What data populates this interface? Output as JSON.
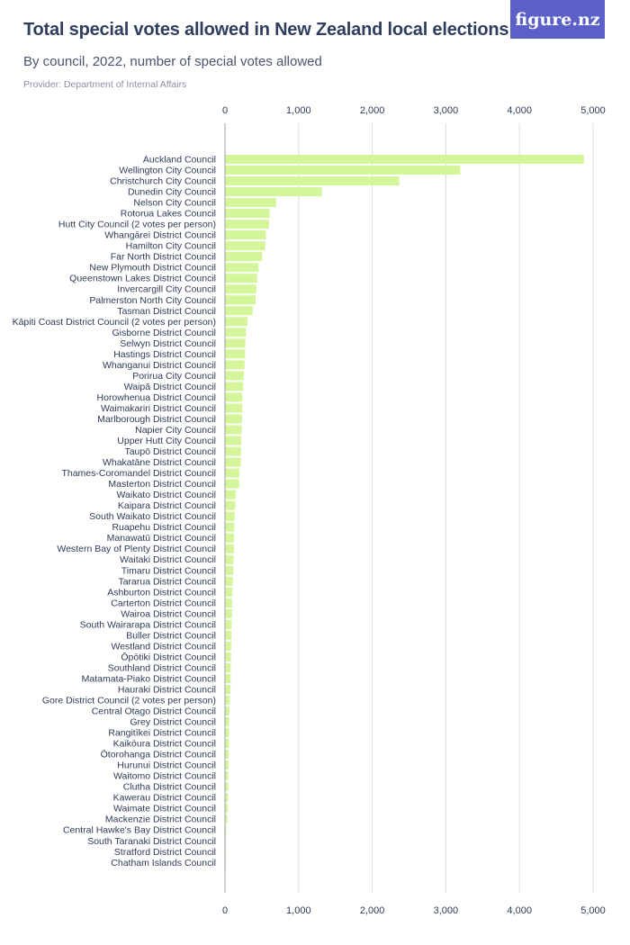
{
  "header": {
    "title": "Total special votes allowed in New Zealand local elections",
    "subtitle": "By council, 2022, number of special votes allowed",
    "provider": "Provider: Department of Internal Affairs",
    "logo": "figure.nz"
  },
  "colors": {
    "bar": "#d4f59a",
    "grid": "#dddddd",
    "axis": "#9aa0ad",
    "label": "#2e3b55",
    "logo_bg": "#5b5fc7"
  },
  "chart_data": {
    "type": "bar",
    "orientation": "horizontal",
    "title": "Total special votes allowed in New Zealand local elections",
    "subtitle": "By council, 2022, number of special votes allowed",
    "xlabel": "",
    "ylabel": "",
    "xlim": [
      0,
      5000
    ],
    "ticks": [
      0,
      1000,
      2000,
      3000,
      4000,
      5000
    ],
    "tick_labels": [
      "0",
      "1,000",
      "2,000",
      "3,000",
      "4,000",
      "5,000"
    ],
    "grid": true,
    "categories": [
      "Auckland Council",
      "Wellington City Council",
      "Christchurch City Council",
      "Dunedin City Council",
      "Nelson City Council",
      "Rotorua Lakes Council",
      "Hutt City Council (2 votes per person)",
      "Whangārei District Council",
      "Hamilton City Council",
      "Far North District Council",
      "New Plymouth District Council",
      "Queenstown Lakes District Council",
      "Invercargill City Council",
      "Palmerston North City Council",
      "Tasman District Council",
      "Kāpiti Coast District Council (2 votes per person)",
      "Gisborne District Council",
      "Selwyn District Council",
      "Hastings District Council",
      "Whanganui District Council",
      "Porirua City Council",
      "Waipā District Council",
      "Horowhenua District Council",
      "Waimakariri District Council",
      "Marlborough District Council",
      "Napier City Council",
      "Upper Hutt City Council",
      "Taupō District Council",
      "Whakatāne District Council",
      "Thames-Coromandel District Council",
      "Masterton District Council",
      "Waikato District Council",
      "Kaipara District Council",
      "South Waikato District Council",
      "Ruapehu District Council",
      "Manawatū District Council",
      "Western Bay of Plenty District Council",
      "Waitaki District Council",
      "Timaru District Council",
      "Tararua District Council",
      "Ashburton District Council",
      "Carterton District Council",
      "Wairoa District Council",
      "South Wairarapa District Council",
      "Buller District Council",
      "Westland District Council",
      "Ōpōtiki District Council",
      "Southland District Council",
      "Matamata-Piako District Council",
      "Hauraki District Council",
      "Gore District Council (2 votes per person)",
      "Central Otago District Council",
      "Grey District Council",
      "Rangitīkei District Council",
      "Kaikōura District Council",
      "Ōtorohanga District Council",
      "Hurunui District Council",
      "Waitomo District Council",
      "Clutha District Council",
      "Kawerau District Council",
      "Waimate District Council",
      "Mackenzie District Council",
      "Central Hawke's Bay District Council",
      "South Taranaki District Council",
      "Stratford District Council",
      "Chatham Islands Council"
    ],
    "values": [
      4870,
      3190,
      2360,
      1310,
      690,
      600,
      590,
      550,
      540,
      500,
      450,
      430,
      420,
      410,
      370,
      300,
      280,
      270,
      270,
      260,
      250,
      240,
      230,
      230,
      225,
      220,
      215,
      210,
      210,
      190,
      185,
      140,
      135,
      125,
      120,
      115,
      115,
      110,
      105,
      100,
      95,
      90,
      88,
      85,
      80,
      78,
      75,
      72,
      70,
      68,
      60,
      55,
      52,
      50,
      48,
      45,
      42,
      40,
      38,
      35,
      30,
      25,
      10,
      5,
      3,
      2
    ]
  }
}
